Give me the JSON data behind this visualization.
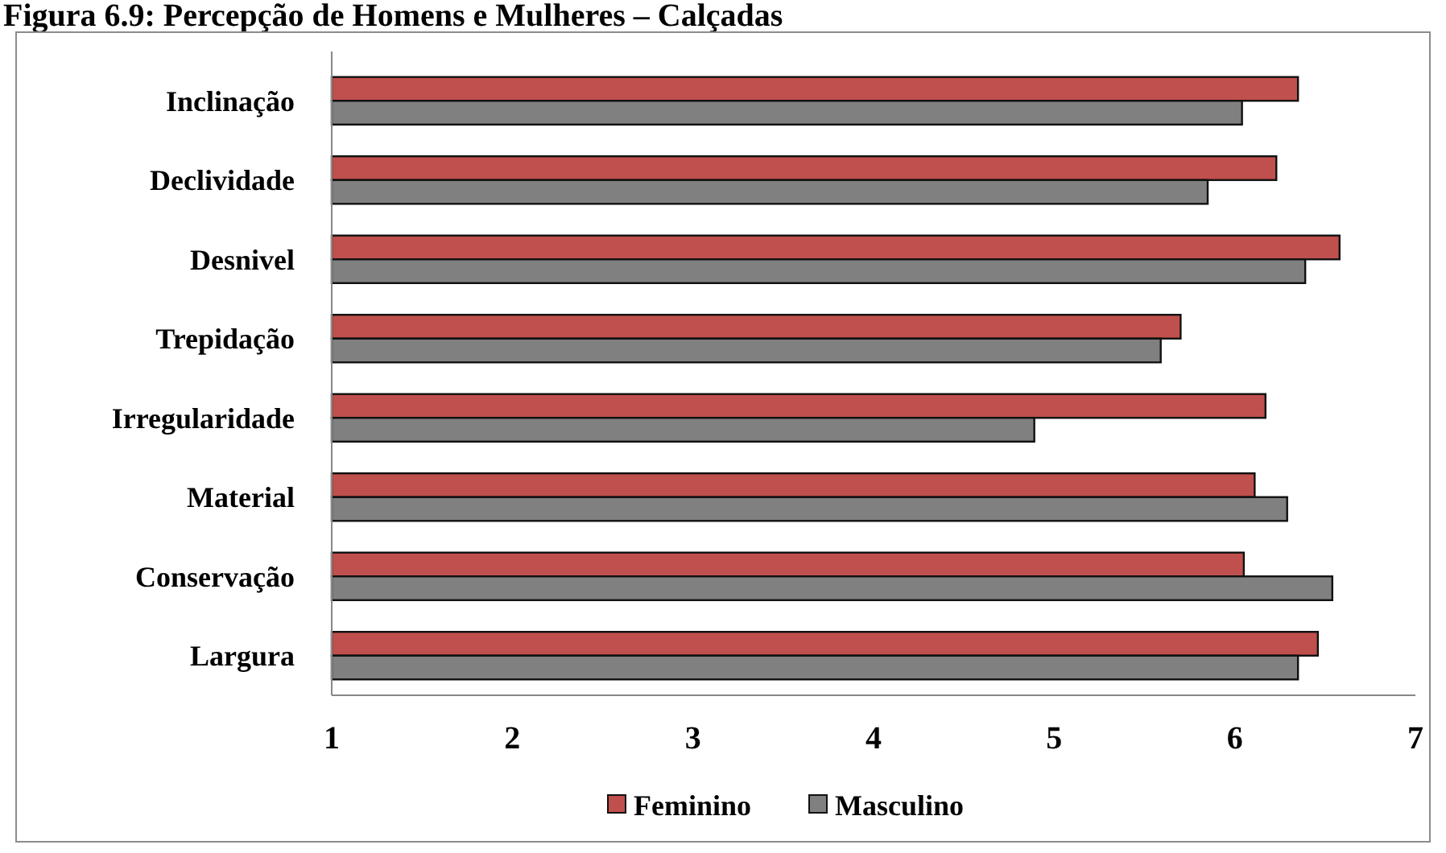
{
  "chart_data": {
    "type": "bar",
    "orientation": "horizontal",
    "title": "Figura 6.9: Percepção de Homens e Mulheres – Calçadas",
    "categories": [
      "Inclinação",
      "Declividade",
      "Desnivel",
      "Trepidação",
      "Irregularidade",
      "Material",
      "Conservação",
      "Largura"
    ],
    "series": [
      {
        "name": "Feminino",
        "color": "#c0504d",
        "values": [
          6.35,
          6.23,
          6.58,
          5.7,
          6.17,
          6.11,
          6.05,
          6.46
        ]
      },
      {
        "name": "Masculino",
        "color": "#808080",
        "values": [
          6.04,
          5.85,
          6.39,
          5.59,
          4.89,
          6.29,
          6.54,
          6.35
        ]
      }
    ],
    "xlim": [
      1,
      7
    ],
    "xticks": [
      1,
      2,
      3,
      4,
      5,
      6,
      7
    ],
    "grid": false,
    "legend": "bottom"
  }
}
